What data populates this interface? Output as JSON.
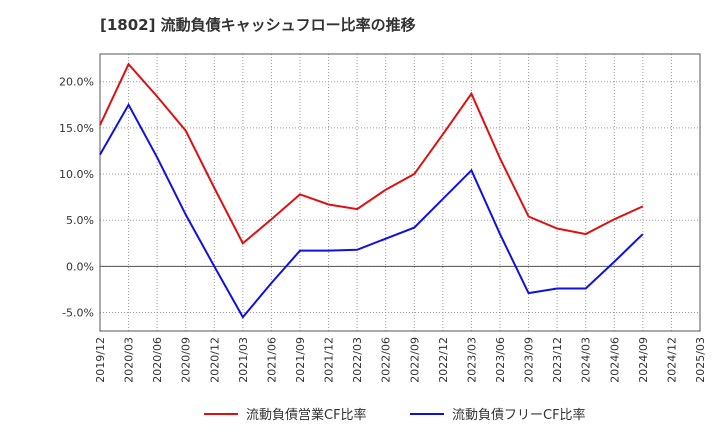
{
  "chart_data": {
    "type": "line",
    "title": "[1802]  流動負債キャッシュフロー比率の推移",
    "xlabel": "",
    "ylabel": "",
    "x_ticks": [
      "2019/12",
      "2020/03",
      "2020/06",
      "2020/09",
      "2020/12",
      "2021/03",
      "2021/06",
      "2021/09",
      "2021/12",
      "2022/03",
      "2022/06",
      "2022/09",
      "2022/12",
      "2023/03",
      "2023/06",
      "2023/09",
      "2023/12",
      "2024/03",
      "2024/06",
      "2024/09",
      "2024/12",
      "2025/03"
    ],
    "y_ticks": [
      "-5.0%",
      "0.0%",
      "5.0%",
      "10.0%",
      "15.0%",
      "20.0%"
    ],
    "ylim": [
      -7,
      23
    ],
    "grid": true,
    "legend_position": "bottom",
    "series": [
      {
        "name": "流動負債営業CF比率",
        "color": "#dd1111",
        "x": [
          "2019/12",
          "2020/03",
          "2020/06",
          "2020/09",
          "2020/12",
          "2021/03",
          "2021/06",
          "2021/09",
          "2021/12",
          "2022/03",
          "2022/06",
          "2022/09",
          "2022/12",
          "2023/03",
          "2023/06",
          "2023/09",
          "2023/12",
          "2024/03",
          "2024/06",
          "2024/09"
        ],
        "values": [
          15.3,
          21.9,
          18.4,
          14.7,
          8.5,
          2.5,
          5.1,
          7.8,
          6.7,
          6.2,
          8.3,
          10.0,
          14.3,
          18.7,
          11.7,
          5.4,
          4.1,
          3.5,
          5.1,
          6.5
        ]
      },
      {
        "name": "流動負債フリーCF比率",
        "color": "#1111dd",
        "x": [
          "2019/12",
          "2020/03",
          "2020/06",
          "2020/09",
          "2020/12",
          "2021/03",
          "2021/06",
          "2021/09",
          "2021/12",
          "2022/03",
          "2022/06",
          "2022/09",
          "2022/12",
          "2023/03",
          "2023/06",
          "2023/09",
          "2023/12",
          "2024/03",
          "2024/06",
          "2024/09"
        ],
        "values": [
          12.1,
          17.5,
          11.8,
          5.6,
          0.0,
          -5.5,
          -1.8,
          1.7,
          1.7,
          1.8,
          3.0,
          4.2,
          7.3,
          10.4,
          3.5,
          -2.9,
          -2.4,
          -2.4,
          0.5,
          3.5
        ]
      }
    ]
  }
}
